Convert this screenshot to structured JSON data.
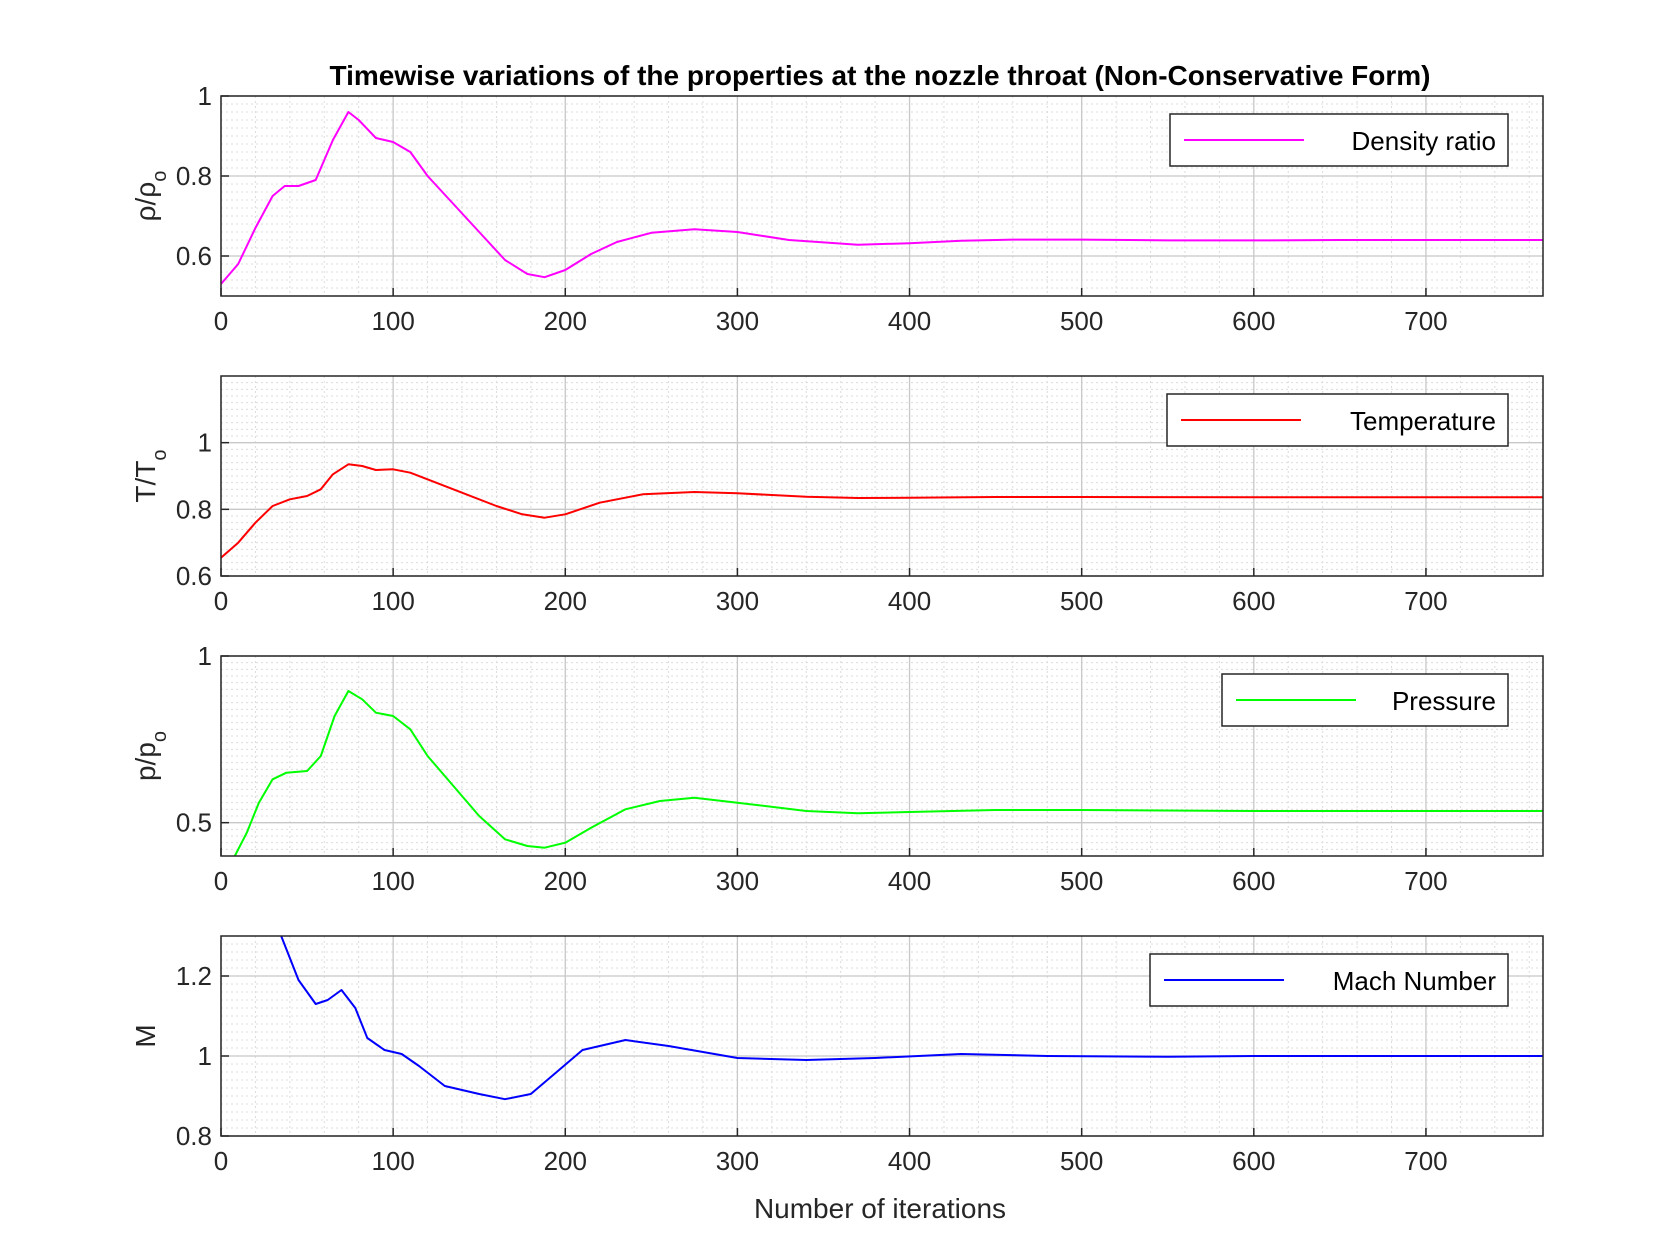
{
  "title": "Timewise variations of the properties at the nozzle throat (Non-Conservative Form)",
  "xlabel": "Number of iterations",
  "chart_data": [
    {
      "type": "line",
      "ylabel": "ρ/ρ",
      "ylabel_sub": "o",
      "legend": "Density ratio",
      "color": "#ff00ff",
      "xlim": [
        0,
        768
      ],
      "ylim": [
        0.5,
        1.0
      ],
      "xticks": [
        0,
        100,
        200,
        300,
        400,
        500,
        600,
        700
      ],
      "yticks": [
        0.6,
        0.8,
        1
      ],
      "yticklabels": [
        "0.6",
        "0.8",
        "1"
      ],
      "grid": true,
      "legend_position": "top-right",
      "x": [
        0,
        10,
        20,
        30,
        37,
        45,
        55,
        65,
        74,
        80,
        90,
        100,
        110,
        120,
        135,
        150,
        165,
        178,
        188,
        200,
        215,
        230,
        250,
        275,
        300,
        330,
        370,
        400,
        430,
        460,
        500,
        550,
        600,
        650,
        700,
        768
      ],
      "y": [
        0.53,
        0.58,
        0.67,
        0.75,
        0.775,
        0.775,
        0.79,
        0.89,
        0.96,
        0.94,
        0.895,
        0.885,
        0.86,
        0.8,
        0.73,
        0.66,
        0.59,
        0.555,
        0.547,
        0.565,
        0.605,
        0.635,
        0.658,
        0.667,
        0.66,
        0.64,
        0.628,
        0.632,
        0.638,
        0.641,
        0.641,
        0.639,
        0.639,
        0.64,
        0.64,
        0.64
      ]
    },
    {
      "type": "line",
      "ylabel": "T/T",
      "ylabel_sub": "o",
      "legend": "Temperature",
      "color": "#ff0000",
      "xlim": [
        0,
        768
      ],
      "ylim": [
        0.6,
        1.2
      ],
      "xticks": [
        0,
        100,
        200,
        300,
        400,
        500,
        600,
        700
      ],
      "yticks": [
        0.6,
        0.8,
        1
      ],
      "yticklabels": [
        "0.6",
        "0.8",
        "1"
      ],
      "grid": true,
      "legend_position": "top-right",
      "x": [
        0,
        10,
        20,
        30,
        40,
        50,
        58,
        65,
        74,
        82,
        90,
        100,
        110,
        125,
        140,
        160,
        175,
        188,
        200,
        220,
        245,
        275,
        300,
        340,
        370,
        400,
        450,
        500,
        600,
        700,
        768
      ],
      "y": [
        0.655,
        0.7,
        0.76,
        0.81,
        0.83,
        0.84,
        0.86,
        0.905,
        0.935,
        0.93,
        0.918,
        0.92,
        0.91,
        0.88,
        0.85,
        0.81,
        0.785,
        0.775,
        0.785,
        0.82,
        0.845,
        0.852,
        0.848,
        0.838,
        0.834,
        0.835,
        0.837,
        0.837,
        0.836,
        0.836,
        0.836
      ]
    },
    {
      "type": "line",
      "ylabel": "p/p",
      "ylabel_sub": "o",
      "legend": "Pressure",
      "color": "#00ff00",
      "xlim": [
        0,
        768
      ],
      "ylim": [
        0.4,
        1.0
      ],
      "xticks": [
        0,
        100,
        200,
        300,
        400,
        500,
        600,
        700
      ],
      "yticks": [
        0.5,
        1
      ],
      "yticklabels": [
        "0.5",
        "1"
      ],
      "grid": true,
      "legend_position": "top-right",
      "x": [
        8,
        15,
        22,
        30,
        38,
        50,
        58,
        66,
        74,
        82,
        90,
        100,
        110,
        120,
        135,
        150,
        165,
        178,
        188,
        200,
        215,
        235,
        255,
        275,
        300,
        340,
        370,
        400,
        450,
        500,
        600,
        700,
        768
      ],
      "y": [
        0.4,
        0.47,
        0.56,
        0.63,
        0.65,
        0.655,
        0.7,
        0.82,
        0.895,
        0.87,
        0.83,
        0.82,
        0.78,
        0.7,
        0.61,
        0.52,
        0.45,
        0.43,
        0.425,
        0.44,
        0.485,
        0.54,
        0.565,
        0.575,
        0.56,
        0.535,
        0.528,
        0.532,
        0.538,
        0.538,
        0.535,
        0.535,
        0.535
      ]
    },
    {
      "type": "line",
      "ylabel": "M",
      "legend": "Mach Number",
      "color": "#0000ff",
      "xlim": [
        0,
        768
      ],
      "ylim": [
        0.8,
        1.3
      ],
      "xticks": [
        0,
        100,
        200,
        300,
        400,
        500,
        600,
        700
      ],
      "yticks": [
        0.8,
        1,
        1.2
      ],
      "yticklabels": [
        "0.8",
        "1",
        "1.2"
      ],
      "grid": true,
      "legend_position": "top-right",
      "x": [
        35,
        45,
        55,
        62,
        70,
        78,
        85,
        95,
        105,
        115,
        130,
        150,
        165,
        180,
        195,
        210,
        235,
        260,
        300,
        340,
        380,
        430,
        480,
        550,
        600,
        700,
        768
      ],
      "y": [
        1.3,
        1.19,
        1.13,
        1.14,
        1.165,
        1.12,
        1.045,
        1.015,
        1.005,
        0.975,
        0.925,
        0.905,
        0.892,
        0.905,
        0.96,
        1.015,
        1.04,
        1.025,
        0.995,
        0.99,
        0.995,
        1.005,
        1.0,
        0.998,
        1.0,
        1.0,
        1.0
      ]
    }
  ]
}
